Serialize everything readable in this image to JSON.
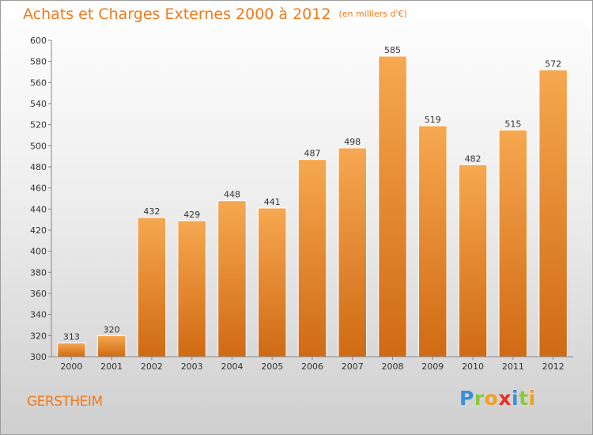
{
  "title": "Achats et Charges Externes 2000 à 2012",
  "unit": "(en milliers d'€)",
  "place": "GERSTHEIM",
  "brand": {
    "letters": [
      "P",
      "r",
      "o",
      "x",
      "i",
      "t",
      "i"
    ],
    "colors": [
      "#3a8fd8",
      "#8cc83c",
      "#f0a020",
      "#e8302c",
      "#3a8fd8",
      "#8cc83c",
      "#f0a020"
    ]
  },
  "chart_data": {
    "type": "bar",
    "title": "Achats et Charges Externes 2000 à 2012",
    "categories": [
      "2000",
      "2001",
      "2002",
      "2003",
      "2004",
      "2005",
      "2006",
      "2007",
      "2008",
      "2009",
      "2010",
      "2011",
      "2012"
    ],
    "values": [
      313,
      320,
      432,
      429,
      448,
      441,
      487,
      498,
      585,
      519,
      482,
      515,
      572
    ],
    "ylim": [
      300,
      600
    ],
    "ytick_step": 20,
    "grid": false,
    "bar_color": "#f0922e"
  }
}
